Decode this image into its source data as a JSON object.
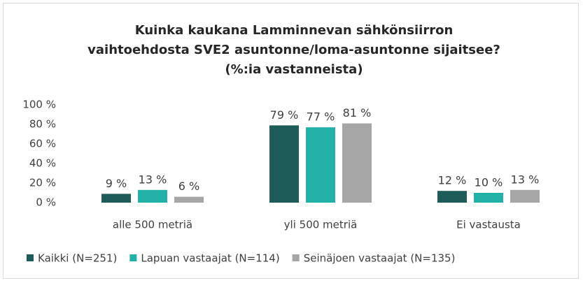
{
  "chart_data": {
    "type": "bar",
    "title": "Kuinka kaukana Lamminnevan sähkönsiirron vaihtoehdosta SVE2 asuntonne/loma-asuntonne sijaitsee? (%:ia vastanneista)",
    "categories": [
      "alle 500 metriä",
      "yli 500 metriä",
      "Ei vastausta"
    ],
    "series": [
      {
        "name": "Kaikki (N=251)",
        "color": "#1d5c59",
        "values": [
          9,
          79,
          12
        ],
        "value_labels": [
          "9 %",
          "79 %",
          "12 %"
        ]
      },
      {
        "name": "Lapuan vastaajat (N=114)",
        "color": "#22b1a6",
        "values": [
          13,
          77,
          10
        ],
        "value_labels": [
          "13 %",
          "77 %",
          "10 %"
        ]
      },
      {
        "name": "Seinäjoen vastaajat (N=135)",
        "color": "#a6a6a6",
        "values": [
          6,
          81,
          13
        ],
        "value_labels": [
          "6 %",
          "81 %",
          "13 %"
        ]
      }
    ],
    "ylim": [
      0,
      100
    ],
    "yticks": [
      {
        "value": 0,
        "label": "0 %"
      },
      {
        "value": 20,
        "label": "20 %"
      },
      {
        "value": 40,
        "label": "40 %"
      },
      {
        "value": 60,
        "label": "60 %"
      },
      {
        "value": 80,
        "label": "80 %"
      },
      {
        "value": 100,
        "label": "100 %"
      }
    ],
    "grid": false,
    "legend": "bottom"
  }
}
